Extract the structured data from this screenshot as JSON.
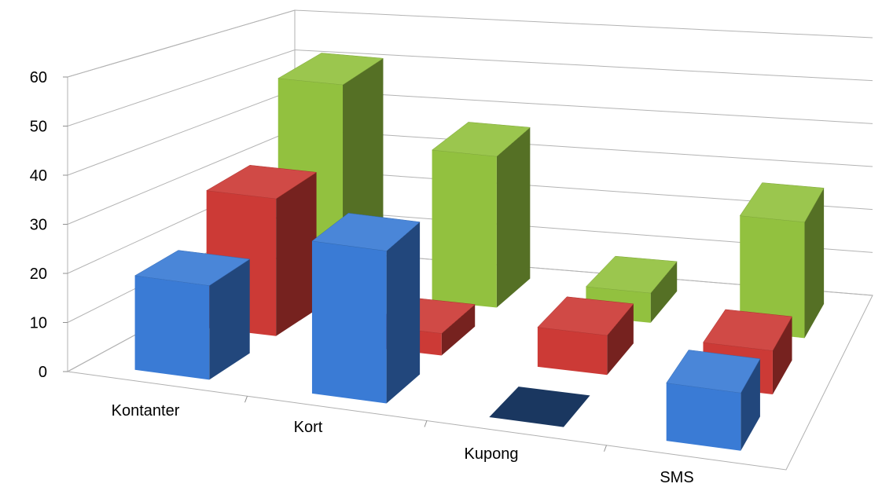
{
  "chart_data": {
    "type": "bar",
    "variant": "3d-column",
    "title": "",
    "xlabel": "",
    "ylabel": "",
    "ylim": [
      0,
      60
    ],
    "yticks": [
      "0",
      "10",
      "20",
      "30",
      "40",
      "50",
      "60"
    ],
    "categories": [
      "Kontanter",
      "Kort",
      "Kupong",
      "SMS"
    ],
    "series": [
      {
        "color": "#3a7bd5",
        "values": [
          20,
          33,
          0,
          13
        ]
      },
      {
        "color": "#cc3a36",
        "values": [
          31,
          5,
          9,
          10
        ]
      },
      {
        "color": "#92c13f",
        "values": [
          50,
          36,
          7,
          27
        ]
      }
    ],
    "grid": true,
    "legend": "none"
  }
}
